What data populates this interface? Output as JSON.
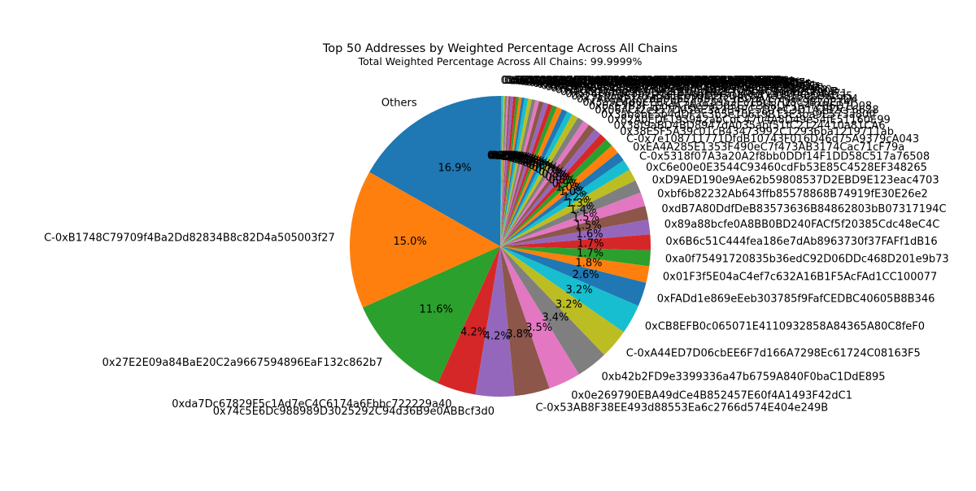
{
  "chart_data": {
    "type": "pie",
    "title": "Top 50 Addresses by Weighted Percentage Across All Chains",
    "subtitle": "Total Weighted Percentage Across All Chains: 99.9999%",
    "start_angle_deg": 90,
    "direction": "counterclockwise",
    "palette": [
      "#1f77b4",
      "#ff7f0e",
      "#2ca02c",
      "#d62728",
      "#9467bd",
      "#8c564b",
      "#e377c2",
      "#7f7f7f",
      "#bcbd22",
      "#17becf"
    ],
    "slices": [
      {
        "label": "Others",
        "value": 16.9,
        "pct_label": "16.9%"
      },
      {
        "label": "C-0xB1748C79709f4Ba2Dd82834B8c82D4a505003f27",
        "value": 15.0,
        "pct_label": "15.0%"
      },
      {
        "label": "0x27E2E09a84BaE20C2a9667594896EaF132c862b7",
        "value": 11.6,
        "pct_label": "11.6%"
      },
      {
        "label": "0xda7Dc67829F5c1Ad7eC4C6174a6Fbbc722229a40",
        "value": 4.2,
        "pct_label": "4.2%"
      },
      {
        "label": "0x74c5E6Dc988989D3025292C94d36B9e0ABBcf3d0",
        "value": 4.2,
        "pct_label": "4.2%"
      },
      {
        "label": "C-0x53AB8F38EE493d88553Ea6c2766d574E404e249B",
        "value": 3.8,
        "pct_label": "3.8%"
      },
      {
        "label": "0x0e269790EBA49dCe4B852457E60f4A1493F42dC1",
        "value": 3.5,
        "pct_label": "3.5%"
      },
      {
        "label": "0xb42b2FD9e3399336a47b6759A840F0baC1DdE895",
        "value": 3.4,
        "pct_label": "3.4%"
      },
      {
        "label": "C-0xA44ED7D06cbEE6F7d166A7298Ec61724C08163F5",
        "value": 3.2,
        "pct_label": "3.2%"
      },
      {
        "label": "0xCB8EFB0c065071E4110932858A84365A80C8feF0",
        "value": 3.2,
        "pct_label": "3.2%"
      },
      {
        "label": "0xFADd1e869eEeb303785f9FafCEDBC40605B8B346",
        "value": 2.6,
        "pct_label": "2.6%"
      },
      {
        "label": "0x01F3f5E04aC4ef7c632A16B1F5AcFAd1CC100077",
        "value": 1.8,
        "pct_label": "1.8%"
      },
      {
        "label": "0xa0f75491720835b36edC92D06DDc468D201e9b73",
        "value": 1.7,
        "pct_label": "1.7%"
      },
      {
        "label": "0x6B6c51C444fea186e7dAb8963730f37FAFf1dB16",
        "value": 1.7,
        "pct_label": "1.7%"
      },
      {
        "label": "0x89a88bcfe0A8BB0BD240FACf5f20385Cdc48eC4C",
        "value": 1.6,
        "pct_label": "1.6%"
      },
      {
        "label": "0xdB7A80DdfDeB83573636B84862803bB07317194C",
        "value": 1.5,
        "pct_label": "1.5%"
      },
      {
        "label": "0xbf6b82232Ab643ffb85578868B74919fE30E26e2",
        "value": 1.5,
        "pct_label": "1.5%"
      },
      {
        "label": "0xD9AED190e9Ae62b59808537D2EBD9E123eac4703",
        "value": 1.4,
        "pct_label": "1.4%"
      },
      {
        "label": "0xC6e00e0E3544C93460cdFb53E85C4528EF348265",
        "value": 1.3,
        "pct_label": "1.3%"
      },
      {
        "label": "C-0x5318f07A3a20A2f8bb0DDf14F1DD58C517a76508",
        "value": 1.2,
        "pct_label": "1.2%"
      },
      {
        "label": "0xEA4A285E1353F490eC7f473AB3174Cac71cF79a",
        "value": 1.0,
        "pct_label": "1.0%"
      },
      {
        "label": "C-0x7e108711771DfdB10743F016D46d75A9379cA043",
        "value": 1.0,
        "pct_label": "1.0%"
      },
      {
        "label": "0x38E5F5A39c01cB43473992C12936ba1219711ab",
        "value": 0.9,
        "pct_label": "0.9%"
      },
      {
        "label": "0x38f9aBD4BD8947dA035abf51fC2124410a81CA6",
        "value": 0.8,
        "pct_label": "0.8%"
      },
      {
        "label": "0x82A0EDF193942abCdC4704A8D49e54fE51160E99",
        "value": 0.8,
        "pct_label": "0.8%"
      },
      {
        "label": "0x3ab8bE5b4dDF2c3b5e10619B13E3ba9E573a80ff",
        "value": 0.8,
        "pct_label": "0.8%"
      },
      {
        "label": "0x06ACf2c957D05bE3a3B4EC5D7eC3D1A2B2cF6628",
        "value": 0.7,
        "pct_label": "0.7%"
      },
      {
        "label": "0x6c65B3F1EdeA7Ae9aDd3E7E3b8DF1a4f2B6D7D08",
        "value": 0.7,
        "pct_label": "0.7%"
      },
      {
        "label": "0x3a9E4b0CE6C4F3d7Ea9a2Ec16cE7D8c9B20E14F",
        "value": 0.7,
        "pct_label": "0.7%"
      },
      {
        "label": "0x7A6E4F1c2dB0E6E2B9F7C1B0dA17c46c5eF3a9D4",
        "value": 0.6,
        "pct_label": "0.6%"
      },
      {
        "label": "0x29F0a0B1d7E3a1E6b9C2f5D4c8A7e3F1B0D9aC35",
        "value": 0.6,
        "pct_label": "0.6%"
      },
      {
        "label": "0x5F4E6A8c3b2D1e0F9a7B6c5D4e3F2a1B0c9D8e71",
        "value": 0.6,
        "pct_label": "0.6%"
      },
      {
        "label": "0x9C8b7A6d5E4f3A2b1C0d9E8f7A6b5C4d3E2f1A0B",
        "value": 0.5,
        "pct_label": "0.5%"
      },
      {
        "label": "0x1D2e3F4a5B6c7D8e9F0a1B2c3D4e5F6a7B8c9D0e",
        "value": 0.5,
        "pct_label": "0.5%"
      },
      {
        "label": "0x4A5b6C7d8E9f0A1b2C3d4E5f6A7b8C9d0E1f2A3b",
        "value": 0.5,
        "pct_label": "0.5%"
      },
      {
        "label": "0x7E8f9A0b1C2d3E4f5A6b7C8d9E0f1A2b3C4d5E6f",
        "value": 0.5,
        "pct_label": "0.5%"
      },
      {
        "label": "0x2B3c4D5e6F7a8B9c0D1e2F3a4B5c6D7e8F9a0B1c",
        "value": 0.4,
        "pct_label": "0.4%"
      },
      {
        "label": "0x6F7a8B9c0D1e2F3a4B5c6D7e8F9a0B1c2D3e4F5a",
        "value": 0.4,
        "pct_label": "0.4%"
      },
      {
        "label": "0x0C1d2E3f4A5b6C7d8E9f0A1b2C3d4E5f6A7b8C9d",
        "value": 0.4,
        "pct_label": "0.4%"
      },
      {
        "label": "0x8D9e0F1a2B3c4D5e6F7a8B9c0D1e2F3a4B5c6D7e",
        "value": 0.4,
        "pct_label": "0.4%"
      },
      {
        "label": "0x3E4f5A6b7C8d9E0f1A2b3C4d5E6f7A8b9C0d1E2f",
        "value": 0.3,
        "pct_label": "0.3%"
      },
      {
        "label": "0x5A6b7C8d9E0f1A2b3C4d5E6f7A8b9C0d1E2f3A4b",
        "value": 0.3,
        "pct_label": "0.3%"
      },
      {
        "label": "0x9B0c1D2e3F4a5B6c7D8e9F0a1B2c3D4e5F6a7B8c",
        "value": 0.3,
        "pct_label": "0.3%"
      },
      {
        "label": "0x1C2d3E4f5A6b7C8d9E0f1A2b3C4d5E6f7A8b9C0d",
        "value": 0.3,
        "pct_label": "0.3%"
      },
      {
        "label": "0x4D5e6F7a8B9c0D1e2F3a4B5c6D7e8F9a0B1c2D3e",
        "value": 0.3,
        "pct_label": "0.3%"
      },
      {
        "label": "0x7F8a9B0c1D2e3F4a5B6c7D8e9F0a1B2c3D4e5F6a",
        "value": 0.2,
        "pct_label": "0.2%"
      },
      {
        "label": "0x2A3b4C5d6E7f8A9b0C1d2E3f4A5b6C7d8E9f0A1b",
        "value": 0.2,
        "pct_label": "0.2%"
      },
      {
        "label": "0x6B7c8D9e0F1a2B3c4D5e6F7a8B9c0D1e2F3a4B5c",
        "value": 0.2,
        "pct_label": "0.2%"
      },
      {
        "label": "0x0D1e2F3a4B5c6D7e8F9a0B1c2D3e4F5a6B7c8D9e",
        "value": 0.2,
        "pct_label": "0.2%"
      },
      {
        "label": "0x8E9f0A1b2C3d4E5f6A7b8C9d0E1f2A3b4C5d6E7f",
        "value": 0.2,
        "pct_label": "0.2%"
      },
      {
        "label": "0x3F4a5B6c7D8e9F0a1B2c3D4e5F6a7B8c9D0e1F2a",
        "value": 0.1,
        "pct_label": "0.1%"
      }
    ]
  }
}
